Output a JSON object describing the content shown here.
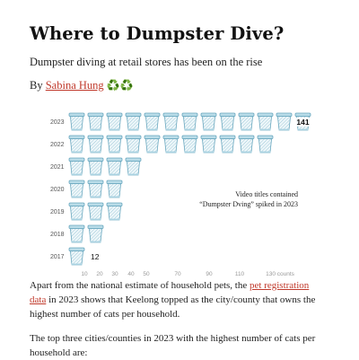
{
  "header": {
    "title": "Where to Dumpster Dive?",
    "subtitle": "Dumpster diving at retail stores has been on the rise",
    "byline_prefix": "By",
    "author": "Sabina Hung",
    "author_emoji": "♻️♻️"
  },
  "chart_data": {
    "type": "pictogram",
    "icon": "wastebasket-icon",
    "icon_color": "#8ec3d6",
    "categories": [
      "2023",
      "2022",
      "2021",
      "2020",
      "2019",
      "2018",
      "2017"
    ],
    "icon_counts": [
      13,
      11,
      4,
      3,
      3,
      2,
      1
    ],
    "labeled_values": {
      "2023": "141",
      "2017": "12"
    },
    "x_ticks": [
      "10",
      "20",
      "30",
      "40",
      "50",
      "70",
      "90",
      "110",
      "130 counts"
    ],
    "annotation": [
      "Video titles contained",
      "“Dumpster Dving” spiked in 2023"
    ]
  },
  "body": {
    "p1_before": "Apart from the national estimate of household pets, the ",
    "p1_link": "pet registration data",
    "p1_after": " in 2023 shows that Keelong topped as the city/county that owns the highest number of cats per household.",
    "p2": "The top three cities/counties in 2023 with the highest number of cats per household are:"
  }
}
